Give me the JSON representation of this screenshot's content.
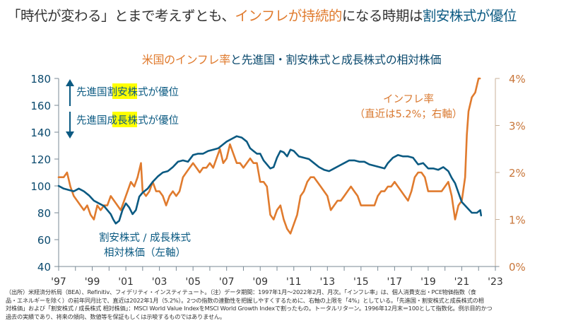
{
  "headline": {
    "part1": "「時代が変わる」とまで考えずとも、",
    "part2": "インフレが持続的",
    "part3": "になる時期は",
    "part4": "割安株式が優位"
  },
  "chart_title": {
    "part1": "米国のインフレ率",
    "part2": "と先進国・割安株式と成長株式の相対株価"
  },
  "annotations": {
    "up_label_pre": "先進国",
    "up_label_hl": "割安",
    "up_label_post": "株式が優位",
    "down_label_pre": "先進国",
    "down_label_hl": "成長",
    "down_label_post": "株式が優位",
    "inflation_label_1": "インフレ率",
    "inflation_label_2": "（直近は5.2%；右軸）",
    "relative_label_1": "割安株式 / 成長株式",
    "relative_label_2": "相対株価（左軸）"
  },
  "colors": {
    "relative": "#0b5a82",
    "inflation": "#e07b2e",
    "highlight": "#ffff00",
    "left_axis": "#0b4a6e",
    "right_axis": "#c8763a"
  },
  "notes": [
    "（出所）米経済分析局（BEA）、Refinitiv、フィデリティ・インスティテュート。（注）データ期間：1997年1月～2022年2月、月次。「インフレ率」は、個人消費支出・PCE物価指数（食",
    "品・エネルギーを除く）の前年同月比で、直近は2022年1月（5.2%）。2つの指数の連動性を把握しやすくするために、右軸の上限を「4%」としている。「先進国・割安株式と成長株式の相",
    "対株価」および「割安株式 / 成長株式 相対株価」：MSCI World Value IndexをMSCI World Growth Indexで割ったもの。トータルリターン。1996年12月末＝100として指数化。例示目的かつ",
    "過去の実績であり、将来の傾向、数値等を保証もしくは示唆するものではありません。"
  ],
  "chart_data": {
    "type": "line",
    "title": "米国のインフレ率と先進国・割安株式と成長株式の相対株価",
    "xlabel": "",
    "ylabel": "割安株式 / 成長株式 相対株価（左軸）",
    "y2label": "インフレ率（右軸）",
    "x_ticks": [
      "'97",
      "'99",
      "'01",
      "'03",
      "'05",
      "'07",
      "'09",
      "'11",
      "'13",
      "'15",
      "'17",
      "'19",
      "'21",
      "'23"
    ],
    "x_range": [
      1997,
      2023
    ],
    "ylim": [
      40,
      180
    ],
    "y_ticks": [
      40,
      60,
      80,
      100,
      120,
      140,
      160,
      180
    ],
    "y2lim": [
      0,
      4
    ],
    "y2_ticks": [
      "0%",
      "1%",
      "2%",
      "3%",
      "4%"
    ],
    "grid": false,
    "series": [
      {
        "name": "割安株式 / 成長株式 相対株価（左軸）",
        "axis": "left",
        "x": [
          1997.0,
          1997.3,
          1997.6,
          1997.9,
          1998.2,
          1998.5,
          1998.8,
          1999.1,
          1999.4,
          1999.7,
          1999.9,
          2000.1,
          2000.25,
          2000.4,
          2000.6,
          2000.8,
          2001.0,
          2001.2,
          2001.4,
          2001.6,
          2001.8,
          2002.0,
          2002.3,
          2002.6,
          2002.9,
          2003.2,
          2003.5,
          2003.8,
          2004.1,
          2004.4,
          2004.7,
          2005.0,
          2005.3,
          2005.6,
          2005.9,
          2006.2,
          2006.5,
          2006.8,
          2007.0,
          2007.3,
          2007.6,
          2007.9,
          2008.2,
          2008.4,
          2008.6,
          2008.8,
          2009.0,
          2009.2,
          2009.4,
          2009.6,
          2009.8,
          2010.0,
          2010.2,
          2010.4,
          2010.6,
          2010.8,
          2011.0,
          2011.3,
          2011.6,
          2011.9,
          2012.2,
          2012.5,
          2012.8,
          2013.1,
          2013.4,
          2013.7,
          2014.0,
          2014.3,
          2014.6,
          2014.9,
          2015.2,
          2015.5,
          2015.8,
          2016.1,
          2016.4,
          2016.6,
          2016.9,
          2017.2,
          2017.5,
          2017.8,
          2018.1,
          2018.4,
          2018.7,
          2019.0,
          2019.3,
          2019.6,
          2019.9,
          2020.2,
          2020.4,
          2020.6,
          2020.8,
          2021.0,
          2021.3,
          2021.6,
          2021.9,
          2022.1,
          2022.15
        ],
        "values": [
          100,
          98,
          97,
          96,
          98,
          96,
          93,
          89,
          87,
          85,
          82,
          79,
          75,
          72,
          74,
          82,
          87,
          84,
          79,
          82,
          92,
          95,
          98,
          103,
          107,
          110,
          111,
          114,
          118,
          119,
          118,
          123,
          124,
          124,
          126,
          127,
          128,
          131,
          133,
          135,
          137,
          136,
          133,
          128,
          126,
          124,
          124,
          119,
          116,
          113,
          114,
          121,
          126,
          125,
          122,
          127,
          126,
          122,
          121,
          120,
          117,
          114,
          112,
          111,
          113,
          115,
          117,
          119,
          119,
          118,
          118,
          116,
          115,
          114,
          113,
          117,
          121,
          123,
          122,
          122,
          121,
          116,
          117,
          113,
          113,
          112,
          114,
          111,
          106,
          102,
          95,
          88,
          84,
          80,
          80,
          82,
          78
        ]
      },
      {
        "name": "インフレ率（右軸）",
        "axis": "right",
        "x": [
          1997.0,
          1997.3,
          1997.5,
          1997.7,
          1997.9,
          1998.1,
          1998.3,
          1998.5,
          1998.7,
          1998.9,
          1999.1,
          1999.3,
          1999.5,
          1999.7,
          1999.9,
          2000.1,
          2000.3,
          2000.5,
          2000.7,
          2000.9,
          2001.1,
          2001.3,
          2001.5,
          2001.7,
          2001.9,
          2002.0,
          2002.2,
          2002.4,
          2002.6,
          2002.8,
          2003.0,
          2003.2,
          2003.4,
          2003.6,
          2003.8,
          2004.0,
          2004.2,
          2004.4,
          2004.6,
          2004.8,
          2005.0,
          2005.2,
          2005.4,
          2005.6,
          2005.8,
          2006.0,
          2006.2,
          2006.4,
          2006.6,
          2006.8,
          2007.0,
          2007.2,
          2007.4,
          2007.6,
          2007.8,
          2008.0,
          2008.2,
          2008.4,
          2008.6,
          2008.8,
          2009.0,
          2009.2,
          2009.4,
          2009.6,
          2009.8,
          2010.0,
          2010.2,
          2010.4,
          2010.6,
          2010.8,
          2011.0,
          2011.2,
          2011.4,
          2011.6,
          2011.8,
          2012.0,
          2012.2,
          2012.4,
          2012.6,
          2012.8,
          2013.0,
          2013.2,
          2013.4,
          2013.6,
          2013.8,
          2014.0,
          2014.2,
          2014.4,
          2014.6,
          2014.8,
          2015.0,
          2015.2,
          2015.4,
          2015.6,
          2015.8,
          2016.0,
          2016.2,
          2016.4,
          2016.6,
          2016.8,
          2017.0,
          2017.2,
          2017.4,
          2017.6,
          2017.8,
          2018.0,
          2018.2,
          2018.4,
          2018.6,
          2018.8,
          2019.0,
          2019.2,
          2019.4,
          2019.6,
          2019.8,
          2020.0,
          2020.2,
          2020.4,
          2020.6,
          2020.8,
          2021.0,
          2021.2,
          2021.3,
          2021.4,
          2021.6,
          2021.8,
          2022.0,
          2022.08
        ],
        "values": [
          1.9,
          1.9,
          2.0,
          1.7,
          1.5,
          1.4,
          1.3,
          1.2,
          1.3,
          1.1,
          1.0,
          1.3,
          1.2,
          1.3,
          1.3,
          1.5,
          1.4,
          1.3,
          1.2,
          1.4,
          1.6,
          1.8,
          1.7,
          1.9,
          2.2,
          1.6,
          1.5,
          1.6,
          1.8,
          1.6,
          1.6,
          1.5,
          1.3,
          1.5,
          1.6,
          1.5,
          1.6,
          1.9,
          2.0,
          2.1,
          2.2,
          2.1,
          2.0,
          2.1,
          2.1,
          2.2,
          2.1,
          2.3,
          2.5,
          2.2,
          2.3,
          2.6,
          2.4,
          2.2,
          2.2,
          2.1,
          2.2,
          2.3,
          2.2,
          2.2,
          1.8,
          1.8,
          1.7,
          1.1,
          1.0,
          1.2,
          1.3,
          1.0,
          0.8,
          0.7,
          0.9,
          1.1,
          1.5,
          1.6,
          1.8,
          1.9,
          1.9,
          1.8,
          1.7,
          1.6,
          1.5,
          1.2,
          1.3,
          1.4,
          1.4,
          1.5,
          1.6,
          1.7,
          1.6,
          1.5,
          1.3,
          1.3,
          1.3,
          1.3,
          1.3,
          1.5,
          1.6,
          1.6,
          1.7,
          1.7,
          1.8,
          1.7,
          1.6,
          1.5,
          1.4,
          1.6,
          1.9,
          2.0,
          2.0,
          1.9,
          1.6,
          1.6,
          1.6,
          1.6,
          1.6,
          1.7,
          1.8,
          1.5,
          1.0,
          1.3,
          1.4,
          1.9,
          2.8,
          3.3,
          3.6,
          3.7,
          4.0,
          4.0
        ]
      }
    ]
  }
}
